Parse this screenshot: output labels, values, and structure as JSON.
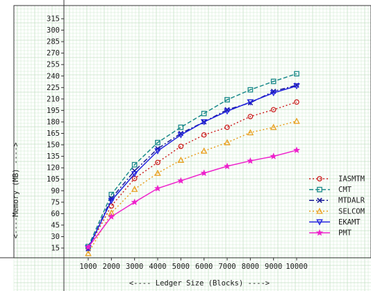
{
  "chart_data": {
    "type": "line",
    "xlabel": "<---- Ledger Size (Blocks) ---->",
    "ylabel": "<----Memory (MB) ---->",
    "x": [
      1000,
      2000,
      3000,
      4000,
      5000,
      6000,
      7000,
      8000,
      9000,
      10000
    ],
    "xticks": [
      "1000",
      "2000",
      "3000",
      "4000",
      "5000",
      "6000",
      "7000",
      "8000",
      "9000",
      "10000"
    ],
    "yticks": [
      "15",
      "30",
      "45",
      "60",
      "75",
      "90",
      "105",
      "120",
      "135",
      "150",
      "165",
      "180",
      "195",
      "210",
      "225",
      "240",
      "255",
      "270",
      "285",
      "300",
      "315"
    ],
    "ylim": [
      0,
      327
    ],
    "grid": "on",
    "legend_position": "right",
    "series": [
      {
        "name": "IASMTM",
        "color": "#cc2222",
        "marker": "circle",
        "dash": "dot",
        "values": [
          15,
          70,
          106,
          127,
          148,
          163,
          173,
          187,
          196,
          206
        ]
      },
      {
        "name": "CMT",
        "color": "#1a8a8a",
        "marker": "square",
        "dash": "dash",
        "values": [
          17,
          85,
          124,
          153,
          173,
          191,
          209,
          222,
          233,
          243
        ]
      },
      {
        "name": "MTDALR",
        "color": "#1a1a99",
        "marker": "x",
        "dash": "dashdot",
        "values": [
          14,
          80,
          116,
          145,
          165,
          180,
          196,
          205,
          220,
          228
        ]
      },
      {
        "name": "SELCOM",
        "color": "#e8a020",
        "marker": "triangle-up",
        "dash": "dot",
        "values": [
          8,
          61,
          92,
          113,
          130,
          142,
          153,
          166,
          173,
          181
        ]
      },
      {
        "name": "EKAMT",
        "color": "#2020dd",
        "marker": "triangle-down",
        "dash": "solid",
        "values": [
          15,
          77,
          112,
          142,
          163,
          180,
          194,
          206,
          218,
          227
        ]
      },
      {
        "name": "PMT",
        "color": "#ee22cc",
        "marker": "star",
        "dash": "solid",
        "values": [
          16,
          56,
          75,
          93,
          103,
          113,
          122,
          129,
          135,
          143
        ]
      }
    ]
  }
}
